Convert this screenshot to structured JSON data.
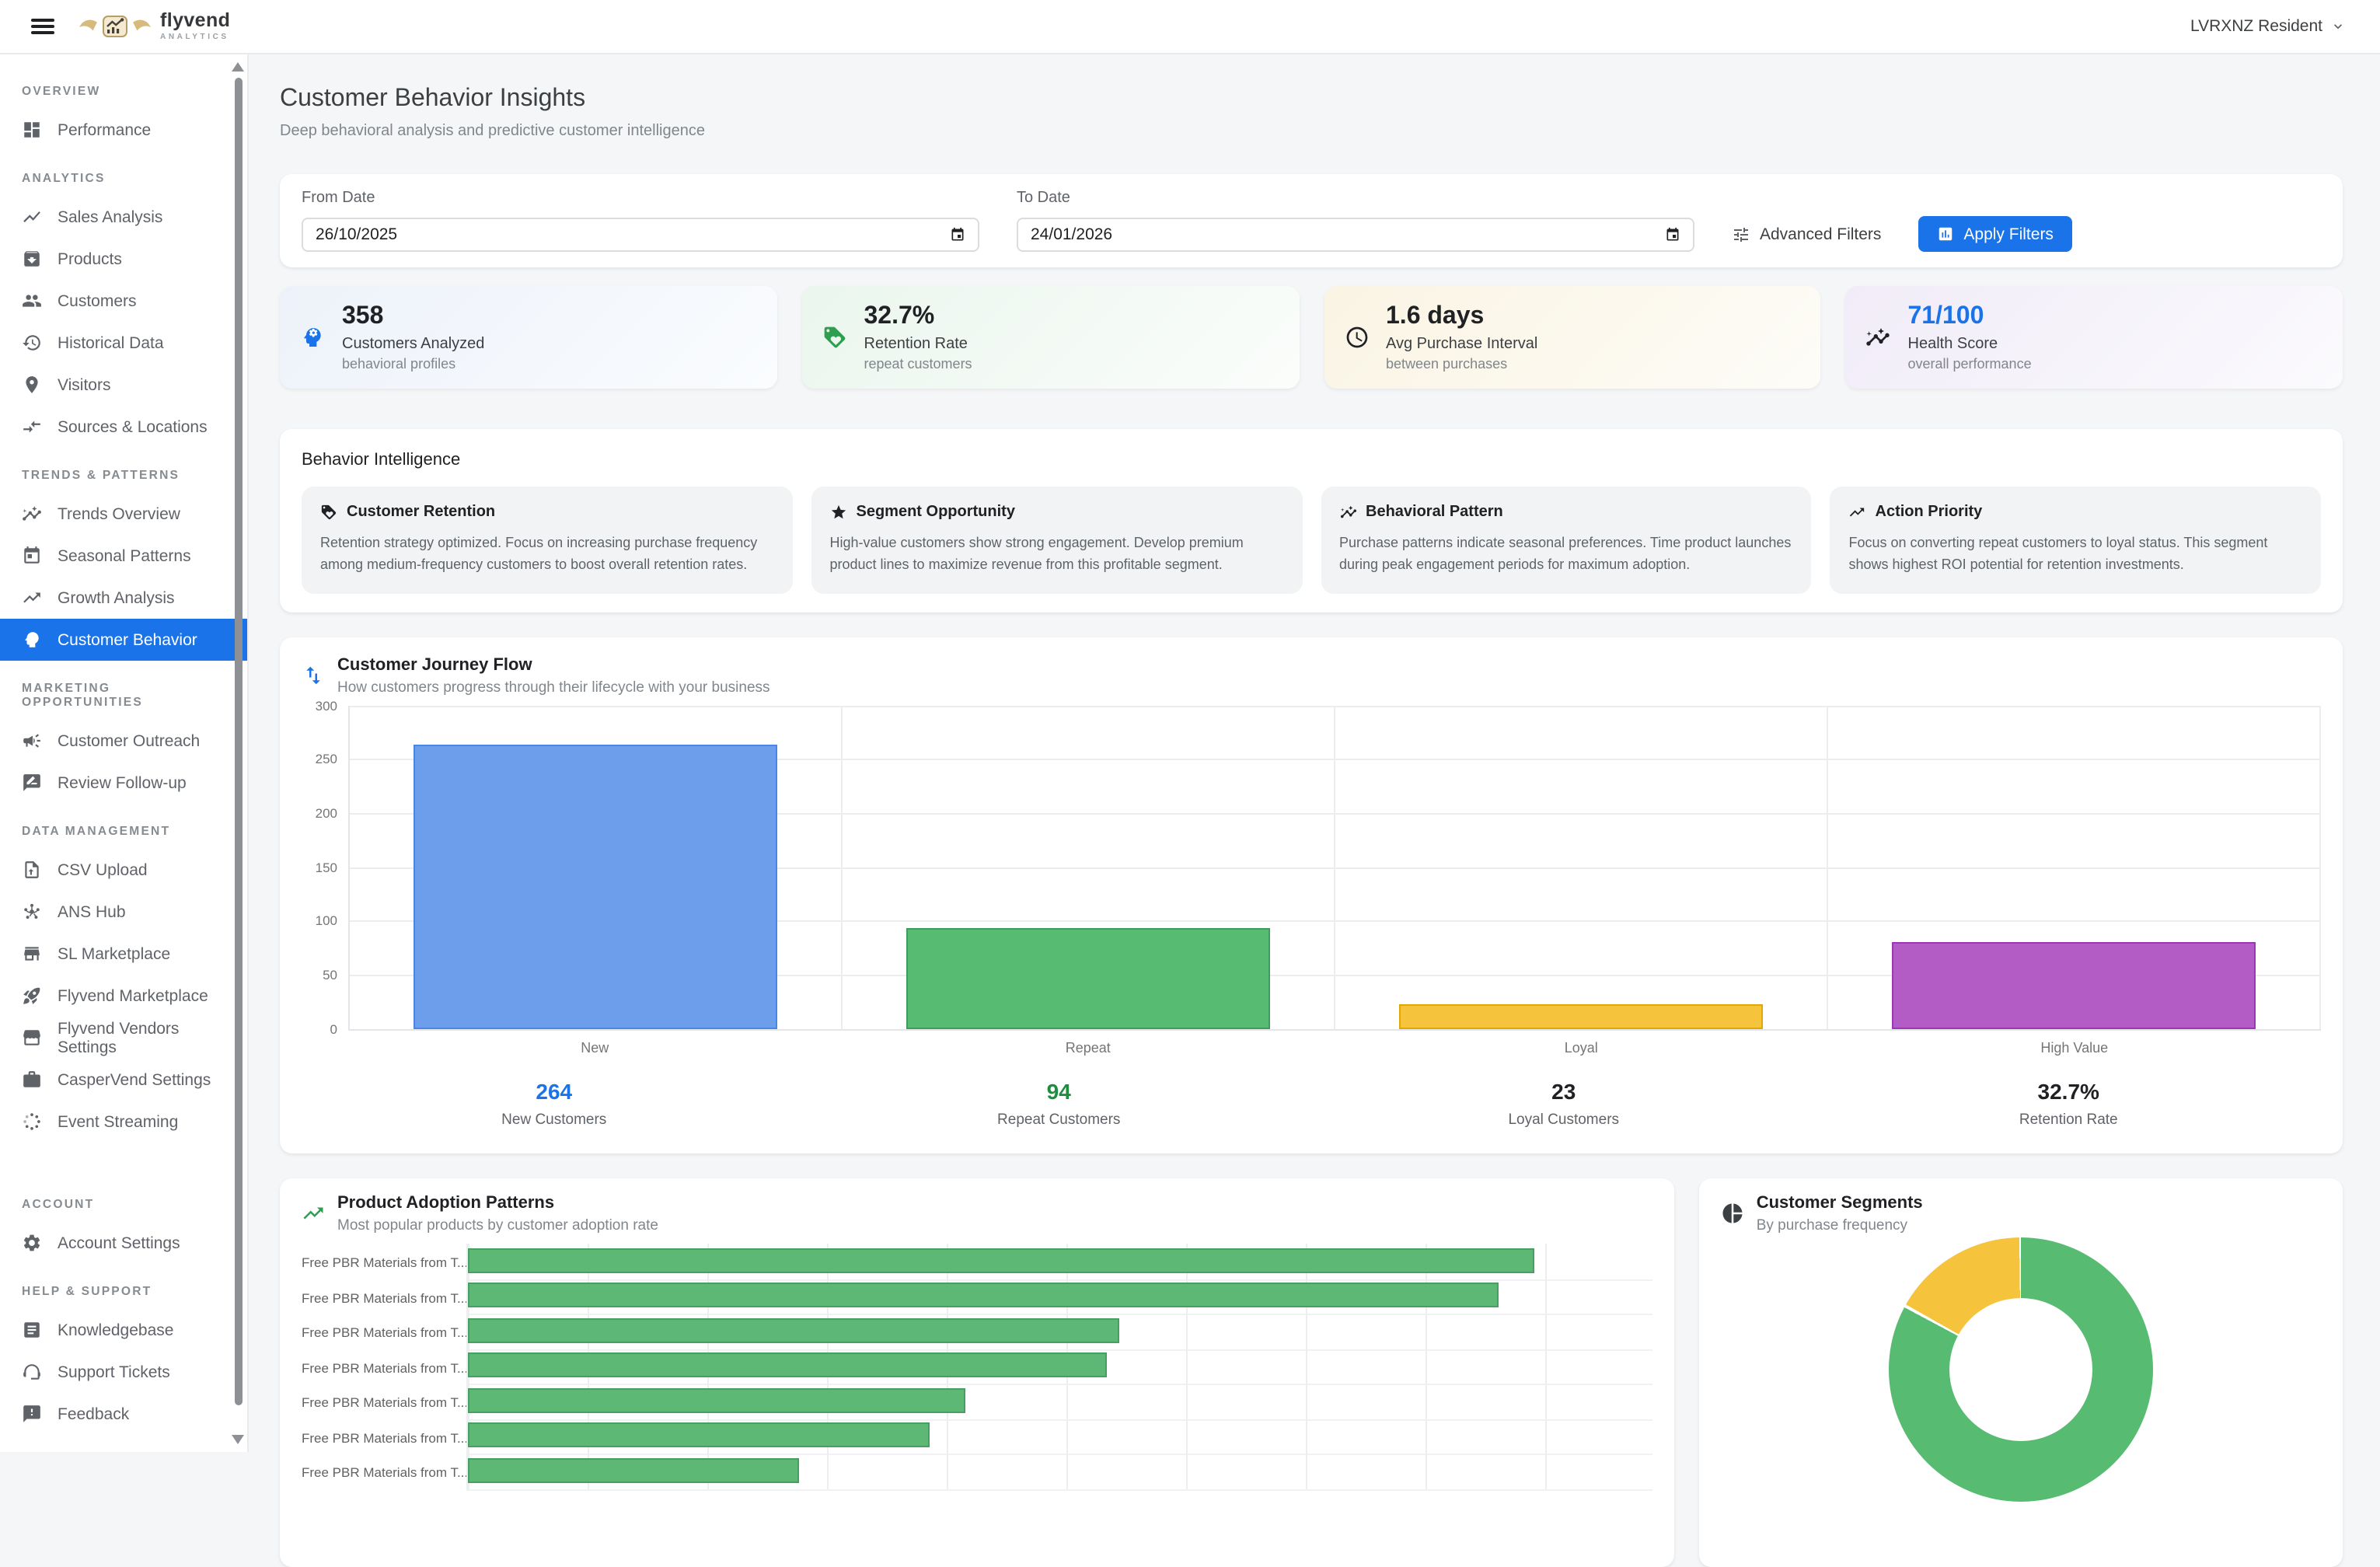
{
  "header": {
    "brand": {
      "name": "flyvend",
      "tagline": "ANALYTICS"
    },
    "user_menu": {
      "name": "LVRXNZ Resident"
    }
  },
  "sidebar": {
    "sections": [
      {
        "label": "OVERVIEW",
        "items": [
          {
            "label": "Performance",
            "icon": "dashboard"
          }
        ]
      },
      {
        "label": "ANALYTICS",
        "items": [
          {
            "label": "Sales Analysis",
            "icon": "show-chart"
          },
          {
            "label": "Products",
            "icon": "archive"
          },
          {
            "label": "Customers",
            "icon": "people"
          },
          {
            "label": "Historical Data",
            "icon": "history"
          },
          {
            "label": "Visitors",
            "icon": "place"
          },
          {
            "label": "Sources & Locations",
            "icon": "compare-arrows"
          }
        ]
      },
      {
        "label": "TRENDS & PATTERNS",
        "items": [
          {
            "label": "Trends Overview",
            "icon": "insights"
          },
          {
            "label": "Seasonal Patterns",
            "icon": "calendar"
          },
          {
            "label": "Growth Analysis",
            "icon": "trending-up"
          },
          {
            "label": "Customer Behavior",
            "icon": "psychology",
            "active": true
          }
        ]
      },
      {
        "label": "MARKETING OPPORTUNITIES",
        "items": [
          {
            "label": "Customer Outreach",
            "icon": "campaign"
          },
          {
            "label": "Review Follow-up",
            "icon": "rate-review"
          }
        ]
      },
      {
        "label": "DATA MANAGEMENT",
        "items": [
          {
            "label": "CSV Upload",
            "icon": "upload-file"
          },
          {
            "label": "ANS Hub",
            "icon": "hub"
          },
          {
            "label": "SL Marketplace",
            "icon": "store"
          },
          {
            "label": "Flyvend Marketplace",
            "icon": "rocket"
          },
          {
            "label": "Flyvend Vendors Settings",
            "icon": "storefront"
          },
          {
            "label": "CasperVend Settings",
            "icon": "briefcase"
          },
          {
            "label": "Event Streaming",
            "icon": "stream"
          }
        ]
      },
      {
        "label": "ACCOUNT",
        "extra_gap": true,
        "items": [
          {
            "label": "Account Settings",
            "icon": "gear"
          }
        ]
      },
      {
        "label": "HELP & SUPPORT",
        "items": [
          {
            "label": "Knowledgebase",
            "icon": "article"
          },
          {
            "label": "Support Tickets",
            "icon": "headset"
          },
          {
            "label": "Feedback",
            "icon": "feedback"
          }
        ]
      }
    ]
  },
  "page": {
    "title": "Customer Behavior Insights",
    "subtitle": "Deep behavioral analysis and predictive customer intelligence"
  },
  "filters": {
    "from_label": "From Date",
    "from_value": "26/10/2025",
    "to_label": "To Date",
    "to_value": "24/01/2026",
    "advanced_label": "Advanced Filters",
    "apply_label": "Apply Filters"
  },
  "stats": [
    {
      "value": "358",
      "label": "Customers Analyzed",
      "sublabel": "behavioral profiles",
      "icon": "psychology",
      "icon_color": "#1a73e8",
      "value_color": "#202124",
      "bg": [
        "#edf2fa",
        "#fafcfe"
      ]
    },
    {
      "value": "32.7%",
      "label": "Retention Rate",
      "sublabel": "repeat customers",
      "icon": "loyalty",
      "icon_color": "#2e9e4f",
      "value_color": "#202124",
      "bg": [
        "#eaf6ee",
        "#fbfdfb"
      ]
    },
    {
      "value": "1.6 days",
      "label": "Avg Purchase Interval",
      "sublabel": "between purchases",
      "icon": "schedule",
      "icon_color": "#202124",
      "value_color": "#202124",
      "bg": [
        "#faf4e3",
        "#fdfcf7"
      ]
    },
    {
      "value": "71/100",
      "label": "Health Score",
      "sublabel": "overall performance",
      "icon": "insights",
      "icon_color": "#202124",
      "value_color": "#1a73e8",
      "bg": [
        "#f1ecf8",
        "#fbfafd"
      ]
    }
  ],
  "intelligence": {
    "title": "Behavior Intelligence",
    "cards": [
      {
        "icon": "loyalty",
        "title": "Customer Retention",
        "body": "Retention strategy optimized. Focus on increasing purchase frequency among medium-frequency customers to boost overall retention rates."
      },
      {
        "icon": "star",
        "title": "Segment Opportunity",
        "body": "High-value customers show strong engagement. Develop premium product lines to maximize revenue from this profitable segment."
      },
      {
        "icon": "insights",
        "title": "Behavioral Pattern",
        "body": "Purchase patterns indicate seasonal preferences. Time product launches during peak engagement periods for maximum adoption."
      },
      {
        "icon": "trending-up",
        "title": "Action Priority",
        "body": "Focus on converting repeat customers to loyal status. This segment shows highest ROI potential for retention investments."
      }
    ]
  },
  "journey": {
    "icon": "swap-vert",
    "icon_color": "#1a73e8",
    "title": "Customer Journey Flow",
    "subtitle": "How customers progress through their lifecycle with your business",
    "summary": [
      {
        "value": "264",
        "label": "New Customers",
        "color": "#1a73e8"
      },
      {
        "value": "94",
        "label": "Repeat Customers",
        "color": "#1e8e3e"
      },
      {
        "value": "23",
        "label": "Loyal Customers",
        "color": "#202124"
      },
      {
        "value": "32.7%",
        "label": "Retention Rate",
        "color": "#202124"
      }
    ]
  },
  "adoption": {
    "icon": "trending-up",
    "icon_color": "#2e9e4f",
    "title": "Product Adoption Patterns",
    "subtitle": "Most popular products by customer adoption rate"
  },
  "segments": {
    "icon": "pie-chart",
    "icon_color": "#3c4043",
    "title": "Customer Segments",
    "subtitle": "By purchase frequency"
  },
  "chart_data": [
    {
      "id": "customer-journey-flow",
      "type": "bar",
      "title": "Customer Journey Flow",
      "categories": [
        "New",
        "Repeat",
        "Loyal",
        "High Value"
      ],
      "values": [
        264,
        94,
        23,
        80
      ],
      "bar_colors": [
        "#6d9eeb",
        "#57bb72",
        "#f6c33c",
        "#b45cc6"
      ],
      "bar_border_colors": [
        "#4a86e8",
        "#3d9d5d",
        "#e0a800",
        "#9c36b5"
      ],
      "ylim": [
        0,
        300
      ],
      "yticks": [
        0,
        50,
        100,
        150,
        200,
        250,
        300
      ],
      "grid": true,
      "note": "High Value bar height estimated from gridlines; other values shown in summary row"
    },
    {
      "id": "product-adoption-patterns",
      "type": "bar",
      "orientation": "horizontal",
      "categories": [
        "Free PBR Materials from T...",
        "Free PBR Materials from T...",
        "Free PBR Materials from T...",
        "Free PBR Materials from T...",
        "Free PBR Materials from T...",
        "Free PBR Materials from T...",
        "Free PBR Materials from T..."
      ],
      "values_pct_of_axis": [
        90,
        87,
        55,
        54,
        42,
        39,
        28
      ],
      "bar_color": "#5cb874",
      "bar_border_color": "#46a05f",
      "grid": true,
      "note": "x-axis tick labels cut off below viewport; values are % of visible axis width"
    },
    {
      "id": "customer-segments",
      "type": "pie",
      "donut": true,
      "slices": [
        {
          "pct": 83,
          "color": "#57bb72"
        },
        {
          "pct": 17,
          "color": "#f6c33c"
        }
      ],
      "note": "legend cut off below viewport; slice sizes estimated from angles"
    }
  ],
  "colors": {
    "accent": "#1a73e8",
    "page_bg": "#f5f6f8"
  }
}
